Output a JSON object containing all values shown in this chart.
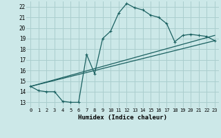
{
  "xlabel": "Humidex (Indice chaleur)",
  "bg_color": "#cce8e8",
  "grid_color": "#aacece",
  "line_color": "#1a6060",
  "xlim": [
    -0.5,
    23.5
  ],
  "ylim": [
    12.5,
    22.5
  ],
  "xticks": [
    0,
    1,
    2,
    3,
    4,
    5,
    6,
    7,
    8,
    9,
    10,
    11,
    12,
    13,
    14,
    15,
    16,
    17,
    18,
    19,
    20,
    21,
    22,
    23
  ],
  "yticks": [
    13,
    14,
    15,
    16,
    17,
    18,
    19,
    20,
    21,
    22
  ],
  "line1_x": [
    0,
    1,
    2,
    3,
    4,
    5,
    6,
    7,
    8,
    9,
    10,
    11,
    12,
    13,
    14,
    15,
    16,
    17,
    18,
    19,
    20,
    21,
    22,
    23
  ],
  "line1_y": [
    14.5,
    14.1,
    14.0,
    14.0,
    13.1,
    13.0,
    13.0,
    17.5,
    15.7,
    19.0,
    19.7,
    21.4,
    22.3,
    21.9,
    21.7,
    21.2,
    21.0,
    20.4,
    18.7,
    19.3,
    19.4,
    19.3,
    19.2,
    18.8
  ],
  "line2_x": [
    0,
    23
  ],
  "line2_y": [
    14.5,
    19.3
  ],
  "line3_x": [
    0,
    23
  ],
  "line3_y": [
    14.5,
    18.8
  ],
  "markersize": 2.5
}
